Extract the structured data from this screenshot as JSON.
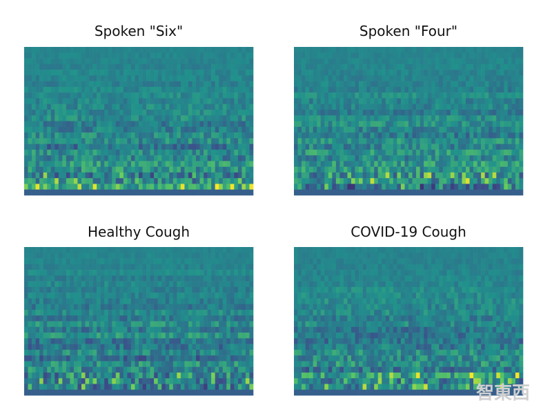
{
  "panels": [
    {
      "title": "Spoken \"Six\""
    },
    {
      "title": "Spoken \"Four\""
    },
    {
      "title": "Healthy Cough"
    },
    {
      "title": "COVID-19 Cough"
    }
  ],
  "watermark": "智東西"
}
